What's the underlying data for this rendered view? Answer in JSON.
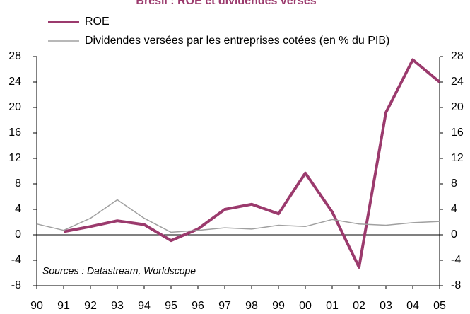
{
  "chart_data": {
    "type": "line",
    "title": "Brésil : ROE et dividendes versés",
    "categories": [
      "90",
      "91",
      "92",
      "93",
      "94",
      "95",
      "96",
      "97",
      "98",
      "99",
      "00",
      "01",
      "02",
      "03",
      "04",
      "05"
    ],
    "series": [
      {
        "name": "ROE",
        "color": "#9b3a6d",
        "values": [
          null,
          0.5,
          1.3,
          2.2,
          1.6,
          -0.9,
          0.9,
          4.0,
          4.8,
          3.3,
          9.7,
          3.6,
          -5.1,
          19.2,
          27.5,
          24.0
        ]
      },
      {
        "name": "Dividendes versées par les entreprises cotées (en % du PIB)",
        "color": "#a0a0a0",
        "values": [
          1.7,
          0.7,
          2.6,
          5.5,
          2.6,
          0.4,
          0.7,
          1.1,
          0.9,
          1.5,
          1.3,
          2.4,
          1.7,
          1.5,
          1.9,
          2.1
        ]
      }
    ],
    "ylim": [
      -8,
      28
    ],
    "yticks": [
      -8,
      -4,
      0,
      4,
      8,
      12,
      16,
      20,
      24,
      28
    ],
    "y2lim": [
      -8,
      28
    ],
    "y2ticks": [
      -8,
      -4,
      0,
      4,
      8,
      12,
      16,
      20,
      24,
      28
    ],
    "annotation": "Sources :  Datastream, Worldscope"
  }
}
